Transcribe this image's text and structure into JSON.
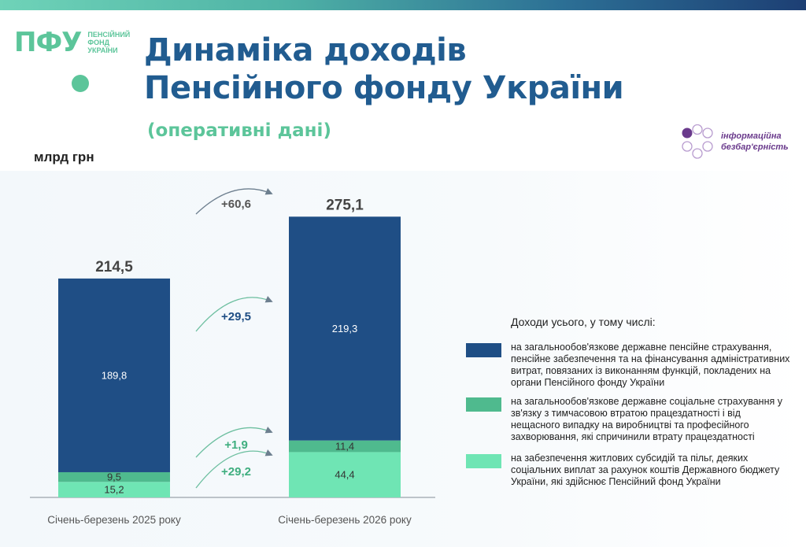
{
  "header": {
    "logo_mark": "ПФУ",
    "logo_text": [
      "ПЕНСІЙНИЙ",
      "ФОНД",
      "УКРАЇНИ"
    ],
    "title_line1": "Динаміка доходів",
    "title_line2": "Пенсійного фонду України",
    "subtitle": "(оперативні дані)",
    "unit": "млрд грн",
    "badge_line1": "інформаційна",
    "badge_line2": "безбар'єрність"
  },
  "colors": {
    "dark_blue": "#1f4e85",
    "mid_green": "#4fba8e",
    "light_green": "#6fe5b4",
    "title_blue": "#215c90",
    "accent_green": "#5cc59a",
    "badge_purple": "#6a3a8c"
  },
  "chart_data": {
    "type": "bar",
    "stacked": true,
    "categories": [
      "Січень-березень 2025 року",
      "Січень-березень 2026 року"
    ],
    "series": [
      {
        "key": "social",
        "values": [
          15.2,
          44.4
        ],
        "color": "#6fe5b4"
      },
      {
        "key": "insurance",
        "values": [
          9.5,
          11.4
        ],
        "color": "#4fba8e"
      },
      {
        "key": "pension",
        "values": [
          189.8,
          219.3
        ],
        "color": "#1f4e85"
      }
    ],
    "totals": [
      "214,5",
      "275,1"
    ],
    "segment_labels": [
      [
        "15,2",
        "9,5",
        "189,8"
      ],
      [
        "44,4",
        "11,4",
        "219,3"
      ]
    ],
    "deltas": [
      {
        "label": "+60,6",
        "level": "total"
      },
      {
        "label": "+29,5",
        "level": "pension"
      },
      {
        "label": "+1,9",
        "level": "insurance"
      },
      {
        "label": "+29,2",
        "level": "social"
      }
    ],
    "ylim": [
      0,
      300
    ]
  },
  "legend": {
    "title": "Доходи усього, у тому числі:",
    "items": [
      {
        "label": "на загальнообов'язкове державне пенсійне страхування, пенсійне забезпечення та на фінансування адміністративних витрат, повязаних із виконанням функцій, покладених на органи Пенсійного фонду України",
        "color": "#1f4e85"
      },
      {
        "label": "на загальнообов'язкове державне соціальне страхування у зв'язку з тимчасовою втратою працездатності і від нещасного випадку на виробництві та професійного захворювання, які спричинили втрату працездатності",
        "color": "#4fba8e"
      },
      {
        "label": "на забезпечення житлових субсидій та пільг, деяких соціальних виплат за рахунок коштів Державного бюджету України, які здійснює Пенсійний фонд України",
        "color": "#6fe5b4"
      }
    ]
  }
}
